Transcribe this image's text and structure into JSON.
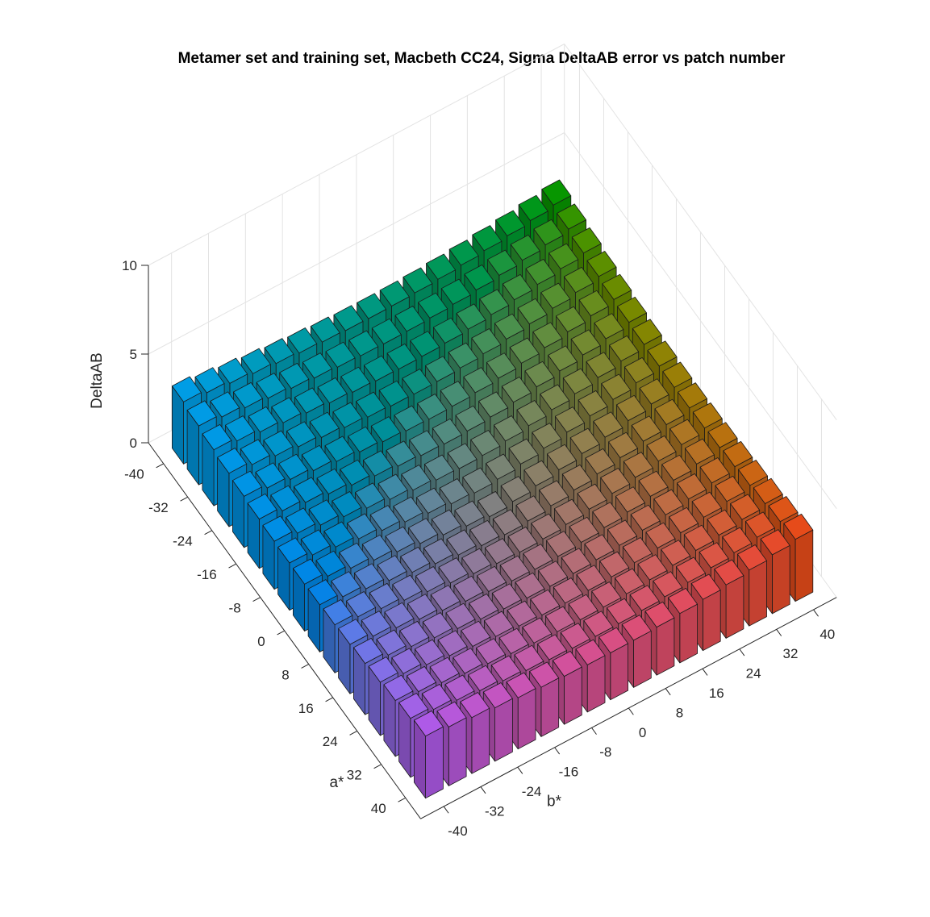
{
  "chart_data": {
    "type": "bar3d",
    "title": "Metamer set and training set, Macbeth CC24, Sigma DeltaAB error vs patch number",
    "xlabel": "a*",
    "ylabel": "b*",
    "zlabel": "DeltaAB",
    "a_values": [
      -40,
      -35,
      -30,
      -25,
      -20,
      -15,
      -10,
      -5,
      0,
      5,
      10,
      15,
      20,
      25,
      30,
      35,
      40
    ],
    "b_values": [
      -40,
      -35,
      -30,
      -25,
      -20,
      -15,
      -10,
      -5,
      0,
      5,
      10,
      15,
      20,
      25,
      30,
      35,
      40
    ],
    "a_ticks": [
      -40,
      -32,
      -24,
      -16,
      -8,
      0,
      8,
      16,
      24,
      32,
      40
    ],
    "a_tick_labels": [
      "-40",
      "-32",
      "-24",
      "-16",
      "-8",
      "0",
      "8",
      "16",
      "24",
      "32",
      "40"
    ],
    "b_ticks": [
      -40,
      -32,
      -24,
      -16,
      -8,
      0,
      8,
      16,
      24,
      32,
      40
    ],
    "b_tick_labels": [
      "-40",
      "-32",
      "-24",
      "-16",
      "-8",
      "0",
      "8",
      "16",
      "24",
      "32",
      "40"
    ],
    "z_ticks": [
      0,
      5,
      10
    ],
    "z_tick_labels": [
      "0",
      "5",
      "10"
    ],
    "zlim": [
      0,
      10
    ],
    "grid": true,
    "color_mapping": "CIELAB hue of each (a*, b*) cell",
    "values_note": "DeltaAB grows with chroma: ~0.9 at center, ~3.5 at corners"
  }
}
